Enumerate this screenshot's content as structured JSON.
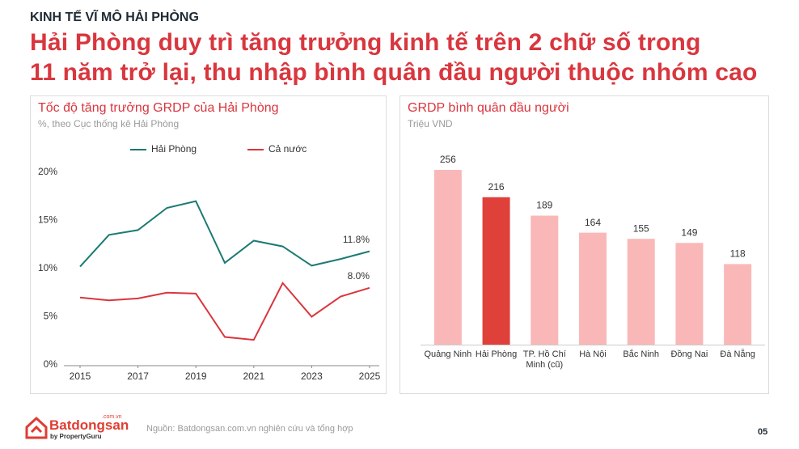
{
  "header": {
    "kicker": "KINH TẾ VĨ MÔ HẢI PHÒNG",
    "title_lines": [
      "Hải Phòng duy trì tăng trưởng kinh tế trên 2 chữ số trong",
      "11 năm trở lại, thu nhập bình quân đầu người thuộc nhóm cao"
    ]
  },
  "chart_data": [
    {
      "type": "line",
      "title": "Tốc độ tăng trưởng GRDP của Hải Phòng",
      "subtitle": "%, theo Cục thống kê Hải Phòng",
      "x": [
        2015,
        2016,
        2017,
        2018,
        2019,
        2020,
        2021,
        2022,
        2023,
        2024,
        2025
      ],
      "series": [
        {
          "name": "Hải Phòng",
          "color": "#1b7a74",
          "values": [
            10.2,
            13.5,
            14.0,
            16.3,
            17.0,
            10.6,
            12.9,
            12.3,
            10.3,
            11.0,
            11.8
          ],
          "value_labels": [
            null,
            null,
            null,
            null,
            null,
            null,
            null,
            null,
            null,
            null,
            "11.8%"
          ]
        },
        {
          "name": "Cả nước",
          "color": "#d9363e",
          "values": [
            7.0,
            6.7,
            6.9,
            7.5,
            7.4,
            2.9,
            2.6,
            8.5,
            5.0,
            7.1,
            8.0
          ],
          "value_labels": [
            null,
            null,
            null,
            null,
            null,
            null,
            null,
            null,
            null,
            null,
            "8.0%"
          ]
        }
      ],
      "xlim": [
        2015,
        2025
      ],
      "xticks": [
        2015,
        2017,
        2019,
        2021,
        2023,
        2025
      ],
      "ylim": [
        0,
        20
      ],
      "yticks": [
        {
          "value": 0,
          "label": "0%"
        },
        {
          "value": 5,
          "label": "5%"
        },
        {
          "value": 10,
          "label": "10%"
        },
        {
          "value": 15,
          "label": "15%"
        },
        {
          "value": 20,
          "label": "20%"
        }
      ],
      "grid": false,
      "legend": "top"
    },
    {
      "type": "bar",
      "title": "GRDP bình quân đầu người",
      "subtitle": "Triệu VND",
      "categories": [
        "Quảng Ninh",
        "Hải Phòng",
        "TP. Hồ Chí Minh (cũ)",
        "Hà Nội",
        "Bắc Ninh",
        "Đồng Nai",
        "Đà Nẵng"
      ],
      "values": [
        256,
        216,
        189,
        164,
        155,
        149,
        118
      ],
      "colors": [
        "#f9b8b7",
        "#e0403a",
        "#f9b8b7",
        "#f9b8b7",
        "#f9b8b7",
        "#f9b8b7",
        "#f9b8b7"
      ]
    }
  ],
  "footer": {
    "logo": "Batdongsan",
    "logo_domain": ".com.vn",
    "logo_sub": "by PropertyGuru",
    "source": "Nguồn: Batdongsan.com.vn nghiên cứu và tổng hợp",
    "page": "05"
  }
}
